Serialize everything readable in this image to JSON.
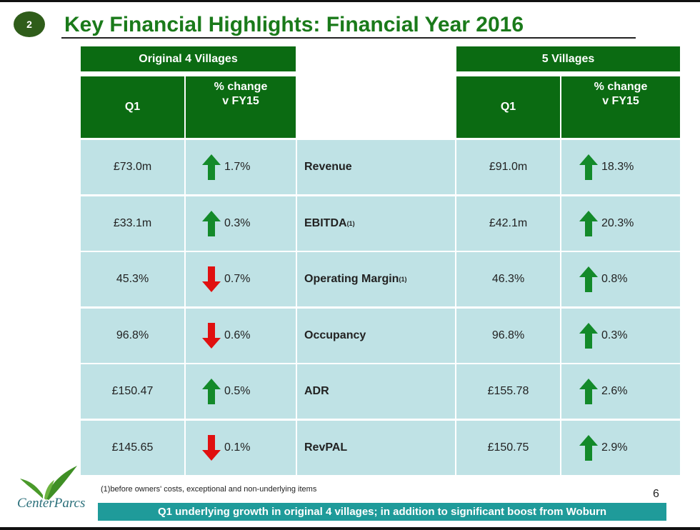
{
  "slide": {
    "badge": "2",
    "title": "Key Financial Highlights: Financial Year 2016",
    "page_number": "6",
    "footnote": "(1)before owners' costs, exceptional and non-underlying items",
    "banner": "Q1 underlying growth in original 4 villages; in addition to significant boost from Woburn",
    "logo_text": "CenterParcs"
  },
  "table": {
    "group_left": "Original 4 Villages",
    "group_right": "5 Villages",
    "col_q1": "Q1",
    "col_change": "% change\nv FY15",
    "colors": {
      "header": "#0b6b12",
      "cell": "#bfe2e5",
      "up": "#138a2a",
      "down": "#e01010"
    },
    "rows": [
      {
        "label": "Revenue",
        "sup": "",
        "l_q1": "£73.0m",
        "l_dir": "up",
        "l_chg": "1.7%",
        "r_q1": "£91.0m",
        "r_dir": "up",
        "r_chg": "18.3%"
      },
      {
        "label": "EBITDA",
        "sup": "(1)",
        "l_q1": "£33.1m",
        "l_dir": "up",
        "l_chg": "0.3%",
        "r_q1": "£42.1m",
        "r_dir": "up",
        "r_chg": "20.3%"
      },
      {
        "label": "Operating Margin",
        "sup": "(1)",
        "l_q1": "45.3%",
        "l_dir": "down",
        "l_chg": "0.7%",
        "r_q1": "46.3%",
        "r_dir": "up",
        "r_chg": "0.8%"
      },
      {
        "label": "Occupancy",
        "sup": "",
        "l_q1": "96.8%",
        "l_dir": "down",
        "l_chg": "0.6%",
        "r_q1": "96.8%",
        "r_dir": "up",
        "r_chg": "0.3%"
      },
      {
        "label": "ADR",
        "sup": "",
        "l_q1": "£150.47",
        "l_dir": "up",
        "l_chg": "0.5%",
        "r_q1": "£155.78",
        "r_dir": "up",
        "r_chg": "2.6%"
      },
      {
        "label": "RevPAL",
        "sup": "",
        "l_q1": "£145.65",
        "l_dir": "down",
        "l_chg": "0.1%",
        "r_q1": "£150.75",
        "r_dir": "up",
        "r_chg": "2.9%"
      }
    ]
  }
}
